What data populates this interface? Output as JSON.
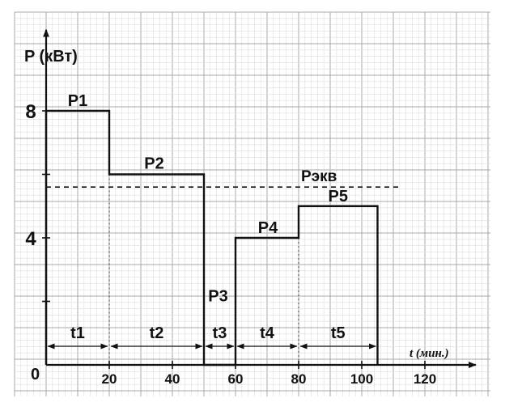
{
  "chart_data": {
    "type": "line",
    "ylabel": "P (кВт)",
    "xlabel": "t (мин.)",
    "origin_label": "0",
    "x_ticks": [
      20,
      40,
      60,
      80,
      100,
      120
    ],
    "y_ticks": [
      4,
      8
    ],
    "xlim": [
      0,
      131
    ],
    "ylim": [
      0,
      10.3
    ],
    "grid": true,
    "steps": [
      {
        "label": "P1",
        "x_start": 0,
        "x_end": 20,
        "y": 8
      },
      {
        "label": "P2",
        "x_start": 20,
        "x_end": 50,
        "y": 6
      },
      {
        "label": "P3",
        "x_start": 50,
        "x_end": 60,
        "y": 0
      },
      {
        "label": "P4",
        "x_start": 60,
        "x_end": 80,
        "y": 4
      },
      {
        "label": "P5",
        "x_start": 80,
        "x_end": 105,
        "y": 5
      }
    ],
    "equivalent_line": {
      "label": "Pэкв",
      "y": 5.6,
      "x_start": 0,
      "x_end": 112
    },
    "intervals": [
      {
        "label": "t1",
        "from": 0,
        "to": 20
      },
      {
        "label": "t2",
        "from": 20,
        "to": 50
      },
      {
        "label": "t3",
        "from": 50,
        "to": 60
      },
      {
        "label": "t4",
        "from": 60,
        "to": 80
      },
      {
        "label": "t5",
        "from": 80,
        "to": 105
      }
    ],
    "colors": {
      "grid_minor": "#dcdcdc",
      "grid_major": "#a9a9a9",
      "line": "#111111"
    }
  }
}
